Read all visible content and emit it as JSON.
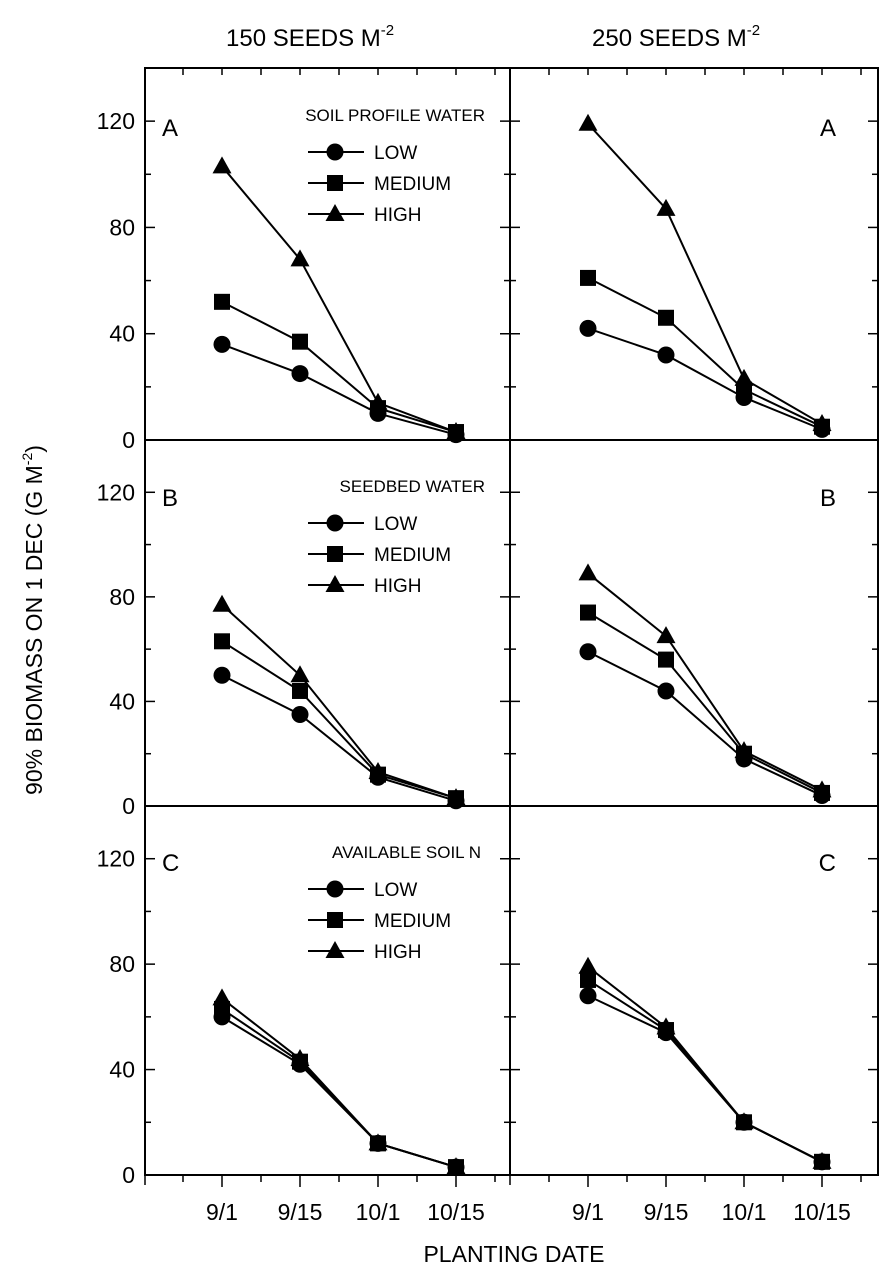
{
  "figure": {
    "column_titles": [
      {
        "text": "150 SEEDS M",
        "sup": "-2"
      },
      {
        "text": "250 SEEDS M",
        "sup": "-2"
      }
    ],
    "y_axis_title": {
      "pre": "90% BIOMASS ON 1 DEC (G M",
      "sup": "-2",
      "post": ")"
    },
    "x_axis_title": "PLANTING DATE",
    "x_tick_labels": [
      "9/1",
      "9/15",
      "10/1",
      "10/15"
    ],
    "y_tick_labels": [
      "0",
      "40",
      "80",
      "120"
    ]
  },
  "chart_data": [
    {
      "type": "line",
      "panel": "A",
      "column": "150 SEEDS M-2",
      "legend_title": "SOIL PROFILE WATER",
      "categories": [
        "9/1",
        "9/15",
        "10/1",
        "10/15"
      ],
      "ylim": [
        0,
        140
      ],
      "yticks": [
        0,
        40,
        80,
        120
      ],
      "series": [
        {
          "name": "LOW",
          "marker": "circle",
          "values": [
            36,
            25,
            10,
            2
          ]
        },
        {
          "name": "MEDIUM",
          "marker": "square",
          "values": [
            52,
            37,
            12,
            3
          ]
        },
        {
          "name": "HIGH",
          "marker": "triangle",
          "values": [
            103,
            68,
            14,
            3
          ]
        }
      ]
    },
    {
      "type": "line",
      "panel": "A",
      "column": "250 SEEDS M-2",
      "legend_title": "",
      "categories": [
        "9/1",
        "9/15",
        "10/1",
        "10/15"
      ],
      "ylim": [
        0,
        140
      ],
      "yticks": [
        0,
        40,
        80,
        120
      ],
      "series": [
        {
          "name": "LOW",
          "marker": "circle",
          "values": [
            42,
            32,
            16,
            4
          ]
        },
        {
          "name": "MEDIUM",
          "marker": "square",
          "values": [
            61,
            46,
            19,
            5
          ]
        },
        {
          "name": "HIGH",
          "marker": "triangle",
          "values": [
            119,
            87,
            23,
            6
          ]
        }
      ]
    },
    {
      "type": "line",
      "panel": "B",
      "column": "150 SEEDS M-2",
      "legend_title": "SEEDBED WATER",
      "categories": [
        "9/1",
        "9/15",
        "10/1",
        "10/15"
      ],
      "ylim": [
        0,
        140
      ],
      "yticks": [
        0,
        40,
        80,
        120
      ],
      "series": [
        {
          "name": "LOW",
          "marker": "circle",
          "values": [
            50,
            35,
            11,
            2
          ]
        },
        {
          "name": "MEDIUM",
          "marker": "square",
          "values": [
            63,
            44,
            12,
            3
          ]
        },
        {
          "name": "HIGH",
          "marker": "triangle",
          "values": [
            77,
            50,
            13,
            3
          ]
        }
      ]
    },
    {
      "type": "line",
      "panel": "B",
      "column": "250 SEEDS M-2",
      "legend_title": "",
      "categories": [
        "9/1",
        "9/15",
        "10/1",
        "10/15"
      ],
      "ylim": [
        0,
        140
      ],
      "yticks": [
        0,
        40,
        80,
        120
      ],
      "series": [
        {
          "name": "LOW",
          "marker": "circle",
          "values": [
            59,
            44,
            18,
            4
          ]
        },
        {
          "name": "MEDIUM",
          "marker": "square",
          "values": [
            74,
            56,
            20,
            5
          ]
        },
        {
          "name": "HIGH",
          "marker": "triangle",
          "values": [
            89,
            65,
            21,
            6
          ]
        }
      ]
    },
    {
      "type": "line",
      "panel": "C",
      "column": "150 SEEDS M-2",
      "legend_title": "AVAILABLE SOIL N",
      "categories": [
        "9/1",
        "9/15",
        "10/1",
        "10/15"
      ],
      "ylim": [
        0,
        140
      ],
      "yticks": [
        0,
        40,
        80,
        120
      ],
      "series": [
        {
          "name": "LOW",
          "marker": "circle",
          "values": [
            60,
            42,
            12,
            3
          ]
        },
        {
          "name": "MEDIUM",
          "marker": "square",
          "values": [
            63,
            43,
            12,
            3
          ]
        },
        {
          "name": "HIGH",
          "marker": "triangle",
          "values": [
            67,
            44,
            12,
            3
          ]
        }
      ]
    },
    {
      "type": "line",
      "panel": "C",
      "column": "250 SEEDS M-2",
      "legend_title": "",
      "categories": [
        "9/1",
        "9/15",
        "10/1",
        "10/15"
      ],
      "ylim": [
        0,
        140
      ],
      "yticks": [
        0,
        40,
        80,
        120
      ],
      "series": [
        {
          "name": "LOW",
          "marker": "circle",
          "values": [
            68,
            54,
            20,
            5
          ]
        },
        {
          "name": "MEDIUM",
          "marker": "square",
          "values": [
            74,
            55,
            20,
            5
          ]
        },
        {
          "name": "HIGH",
          "marker": "triangle",
          "values": [
            79,
            56,
            20,
            5
          ]
        }
      ]
    }
  ]
}
